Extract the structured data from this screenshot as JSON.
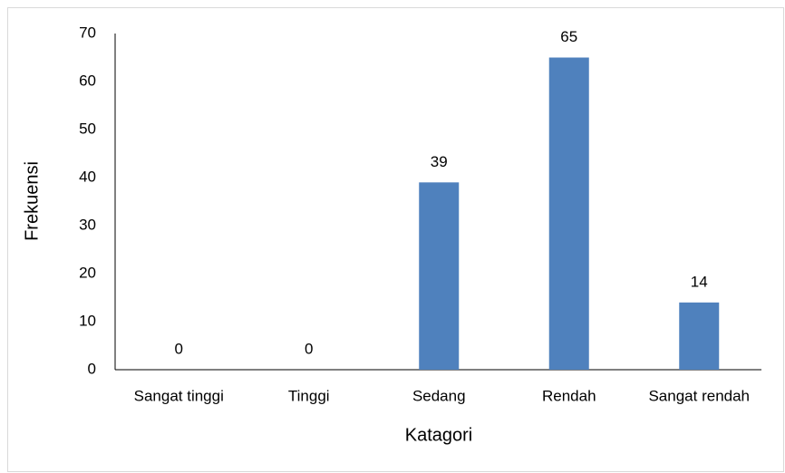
{
  "chart_data": {
    "type": "bar",
    "x_label": "Katagori",
    "y_label": "Frekuensi",
    "categories": [
      "Sangat tinggi",
      "Tinggi",
      "Sedang",
      "Rendah",
      "Sangat rendah"
    ],
    "values": [
      0,
      0,
      39,
      65,
      14
    ],
    "color": "#4f81bd",
    "ylim": [
      0,
      70
    ],
    "yticks": [
      0,
      10,
      20,
      30,
      40,
      50,
      60,
      70
    ],
    "grid": false
  }
}
